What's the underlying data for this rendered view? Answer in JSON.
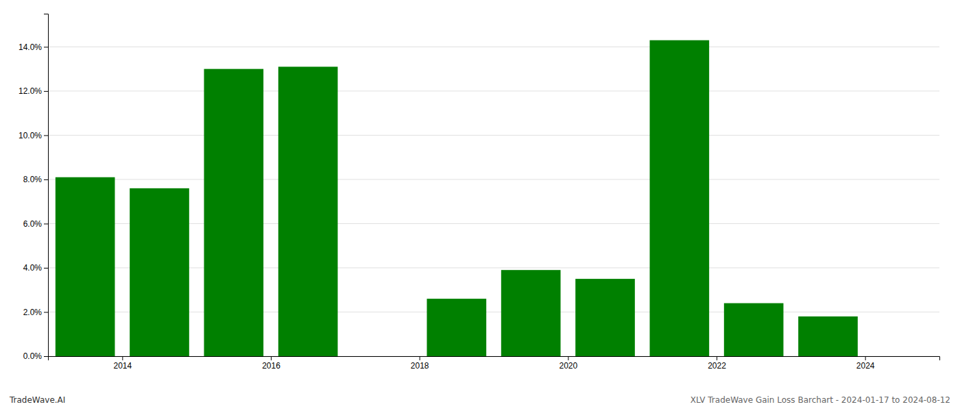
{
  "chart_data": {
    "type": "bar",
    "x": [
      2013,
      2014,
      2015,
      2016,
      2018,
      2019,
      2020,
      2021,
      2022,
      2023
    ],
    "values": [
      0.081,
      0.076,
      0.13,
      0.131,
      0.026,
      0.039,
      0.035,
      0.143,
      0.024,
      0.018
    ],
    "color": "#008000",
    "xlim": [
      2012.5,
      2024.5
    ],
    "xticks": [
      {
        "value": 2013.5,
        "label": "2014"
      },
      {
        "value": 2015.5,
        "label": "2016"
      },
      {
        "value": 2017.5,
        "label": "2018"
      },
      {
        "value": 2019.5,
        "label": "2020"
      },
      {
        "value": 2021.5,
        "label": "2022"
      },
      {
        "value": 2023.5,
        "label": "2024"
      }
    ],
    "ylim": [
      0,
      0.155
    ],
    "yticks": [
      {
        "value": 0.0,
        "label": "0.0%"
      },
      {
        "value": 0.02,
        "label": "2.0%"
      },
      {
        "value": 0.04,
        "label": "4.0%"
      },
      {
        "value": 0.06,
        "label": "6.0%"
      },
      {
        "value": 0.08,
        "label": "8.0%"
      },
      {
        "value": 0.1,
        "label": "10.0%"
      },
      {
        "value": 0.12,
        "label": "12.0%"
      },
      {
        "value": 0.14,
        "label": "14.0%"
      }
    ],
    "grid": true,
    "annotations": [
      "TradeWave.AI",
      "XLV TradeWave Gain Loss Barchart - 2024-01-17 to 2024-08-12"
    ]
  }
}
